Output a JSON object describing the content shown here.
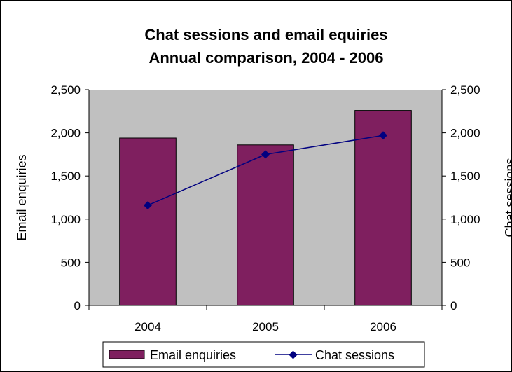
{
  "chart_data": {
    "type": "bar",
    "title": "Chat sessions and email equiries",
    "subtitle": "Annual comparison, 2004 - 2006",
    "categories": [
      "2004",
      "2005",
      "2006"
    ],
    "series": [
      {
        "name": "Email enquiries",
        "type": "bar",
        "axis": "left",
        "values": [
          1940,
          1860,
          2260
        ],
        "color": "#7f1f5f"
      },
      {
        "name": "Chat sessions",
        "type": "line",
        "axis": "right",
        "values": [
          1160,
          1750,
          1970
        ],
        "color": "#000080"
      }
    ],
    "ylabel_left": "Email enquiries",
    "ylabel_right": "Chat sessions",
    "ylim": [
      0,
      2500
    ],
    "yticks": [
      "0",
      "500",
      "1,000",
      "1,500",
      "2,000",
      "2,500"
    ],
    "plot_background": "#c0c0c0",
    "grid": false,
    "legend_position": "bottom"
  }
}
